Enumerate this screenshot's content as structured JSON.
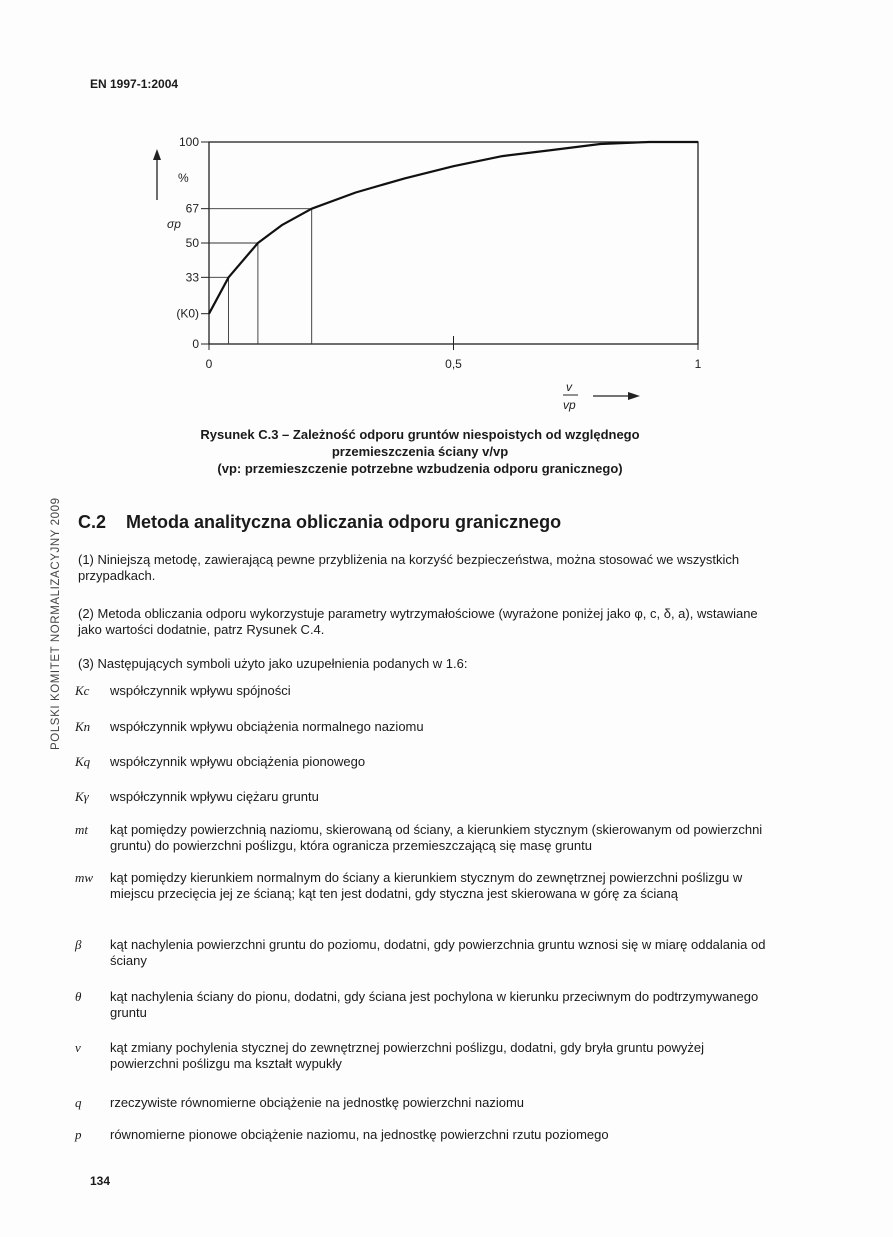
{
  "header": "EN 1997-1:2004",
  "side_text": "POLSKI KOMITET NORMALIZACYJNY 2009",
  "chart_data": {
    "type": "line",
    "ylabel": "σp",
    "yunit": "%",
    "xlabel_num": "v",
    "xlabel_den": "vp",
    "xlim": [
      0,
      1
    ],
    "ylim": [
      0,
      100
    ],
    "y_ticks": [
      "0",
      "(K0)",
      "33",
      "50",
      "67",
      "100"
    ],
    "y_tick_values": [
      0,
      15,
      33,
      50,
      67,
      100
    ],
    "x_ticks": [
      "0",
      "0,5",
      "1"
    ],
    "x_tick_values": [
      0,
      0.5,
      1
    ],
    "series": [
      {
        "x": [
          0,
          0.04,
          0.1,
          0.15,
          0.21,
          0.3,
          0.4,
          0.5,
          0.6,
          0.7,
          0.8,
          0.9,
          1
        ],
        "y": [
          15,
          33,
          50,
          59,
          67,
          75,
          82,
          88,
          93,
          96,
          99,
          100,
          100
        ]
      }
    ],
    "guides": [
      {
        "x": 0.04,
        "y": 33
      },
      {
        "x": 0.1,
        "y": 50
      },
      {
        "x": 0.21,
        "y": 67
      }
    ]
  },
  "caption": {
    "line1": "Rysunek C.3 – Zależność odporu gruntów niespoistych od względnego",
    "line2": "przemieszczenia ściany v/vp",
    "line3": "(vp: przemieszczenie potrzebne wzbudzenia odporu granicznego)"
  },
  "section": {
    "number": "C.2",
    "title": "Metoda analityczna obliczania odporu granicznego"
  },
  "paragraphs": [
    "(1) Niniejszą metodę, zawierającą pewne przybliżenia na korzyść bezpieczeństwa, można stosować we wszystkich przypadkach.",
    "(2) Metoda obliczania odporu wykorzystuje parametry wytrzymałościowe (wyrażone poniżej jako φ, c, δ, a), wstawiane jako wartości dodatnie, patrz Rysunek C.4.",
    "(3) Następujących symboli użyto jako uzupełnienia podanych w 1.6:"
  ],
  "symbols": [
    {
      "sym": "Kc",
      "def": "współczynnik wpływu spójności"
    },
    {
      "sym": "Kn",
      "def": "współczynnik wpływu obciążenia normalnego naziomu"
    },
    {
      "sym": "Kq",
      "def": "współczynnik wpływu obciążenia pionowego"
    },
    {
      "sym": "Kγ",
      "def": "współczynnik wpływu ciężaru gruntu"
    },
    {
      "sym": "mt",
      "def": "kąt pomiędzy powierzchnią naziomu, skierowaną od ściany, a kierunkiem stycznym (skierowanym od powierzchni gruntu) do powierzchni poślizgu, która ogranicza przemieszczającą się masę gruntu"
    },
    {
      "sym": "mw",
      "def": "kąt pomiędzy kierunkiem normalnym do ściany a kierunkiem stycznym do zewnętrznej powierzchni poślizgu w miejscu przecięcia jej ze ścianą; kąt ten jest dodatni, gdy styczna jest skierowana w górę za ścianą"
    },
    {
      "sym": "β",
      "def": "kąt nachylenia powierzchni gruntu do poziomu, dodatni, gdy powierzchnia gruntu wznosi się w miarę oddalania od ściany"
    },
    {
      "sym": "θ",
      "def": "kąt nachylenia ściany do pionu, dodatni, gdy ściana jest pochylona w kierunku przeciwnym do podtrzymywanego gruntu"
    },
    {
      "sym": "ν",
      "def": "kąt zmiany pochylenia stycznej do zewnętrznej powierzchni poślizgu, dodatni, gdy bryła gruntu powyżej powierzchni poślizgu ma kształt wypukły"
    },
    {
      "sym": "q",
      "def": "rzeczywiste równomierne obciążenie na jednostkę powierzchni naziomu"
    },
    {
      "sym": "p",
      "def": "równomierne pionowe obciążenie naziomu, na jednostkę powierzchni rzutu poziomego"
    }
  ],
  "page_number": "134"
}
